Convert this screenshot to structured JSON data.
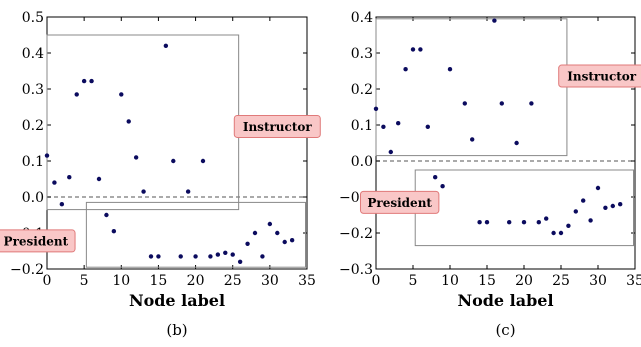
{
  "panels": [
    {
      "caption": "(b)",
      "chart_data": {
        "type": "scatter",
        "xlabel": "Node label",
        "ylabel": "",
        "xlim": [
          0,
          35
        ],
        "ylim": [
          -0.2,
          0.5
        ],
        "xticks": [
          "0",
          "5",
          "10",
          "15",
          "20",
          "25",
          "30",
          "35"
        ],
        "yticks": [
          "−0.2",
          "−0.1",
          "0.0",
          "0.1",
          "0.2",
          "0.3",
          "0.4",
          "0.5"
        ],
        "grid": false,
        "reference_line_y": 0,
        "marker_color": "#0b0b5e",
        "series": [
          {
            "values": [
              [
                0,
                0.115
              ],
              [
                1,
                0.04
              ],
              [
                2,
                -0.02
              ],
              [
                3,
                0.055
              ],
              [
                4,
                0.285
              ],
              [
                5,
                0.322
              ],
              [
                6,
                0.322
              ],
              [
                7,
                0.05
              ],
              [
                8,
                -0.05
              ],
              [
                9,
                -0.095
              ],
              [
                10,
                0.285
              ],
              [
                11,
                0.21
              ],
              [
                12,
                0.11
              ],
              [
                13,
                0.015
              ],
              [
                14,
                -0.165
              ],
              [
                15,
                -0.165
              ],
              [
                16,
                0.42
              ],
              [
                17,
                0.1
              ],
              [
                18,
                -0.165
              ],
              [
                19,
                0.015
              ],
              [
                20,
                -0.165
              ],
              [
                21,
                0.1
              ],
              [
                22,
                -0.165
              ],
              [
                23,
                -0.16
              ],
              [
                24,
                -0.155
              ],
              [
                25,
                -0.16
              ],
              [
                26,
                -0.18
              ],
              [
                27,
                -0.13
              ],
              [
                28,
                -0.1
              ],
              [
                29,
                -0.165
              ],
              [
                30,
                -0.075
              ],
              [
                31,
                -0.1
              ],
              [
                32,
                -0.125
              ],
              [
                33,
                -0.12
              ]
            ]
          }
        ],
        "regions": [
          {
            "x": [
              0,
              25.8
            ],
            "y": [
              -0.035,
              0.45
            ]
          },
          {
            "x": [
              5.3,
              34.8
            ],
            "y": [
              -0.195,
              -0.015
            ]
          }
        ],
        "annotations": [
          {
            "text": "Instructor",
            "x": 31,
            "y": 0.196
          },
          {
            "text": "President",
            "x": -1.5,
            "y": -0.122
          }
        ]
      }
    },
    {
      "caption": "(c)",
      "chart_data": {
        "type": "scatter",
        "xlabel": "Node label",
        "ylabel": "",
        "xlim": [
          0,
          35
        ],
        "ylim": [
          -0.3,
          0.4
        ],
        "xticks": [
          "0",
          "5",
          "10",
          "15",
          "20",
          "25",
          "30",
          "35"
        ],
        "yticks": [
          "−0.3",
          "−0.2",
          "−0.1",
          "0.0",
          "0.1",
          "0.2",
          "0.3",
          "0.4"
        ],
        "grid": false,
        "reference_line_y": 0,
        "marker_color": "#0b0b5e",
        "series": [
          {
            "values": [
              [
                0,
                0.145
              ],
              [
                1,
                0.095
              ],
              [
                2,
                0.025
              ],
              [
                3,
                0.105
              ],
              [
                4,
                0.255
              ],
              [
                5,
                0.31
              ],
              [
                6,
                0.31
              ],
              [
                7,
                0.095
              ],
              [
                8,
                -0.045
              ],
              [
                9,
                -0.07
              ],
              [
                10,
                0.255
              ],
              [
                12,
                0.16
              ],
              [
                13,
                0.06
              ],
              [
                14,
                -0.17
              ],
              [
                15,
                -0.17
              ],
              [
                16,
                0.39
              ],
              [
                17,
                0.16
              ],
              [
                18,
                -0.17
              ],
              [
                19,
                0.05
              ],
              [
                20,
                -0.17
              ],
              [
                21,
                0.16
              ],
              [
                22,
                -0.17
              ],
              [
                23,
                -0.16
              ],
              [
                24,
                -0.2
              ],
              [
                25,
                -0.2
              ],
              [
                26,
                -0.18
              ],
              [
                27,
                -0.14
              ],
              [
                28,
                -0.11
              ],
              [
                29,
                -0.165
              ],
              [
                30,
                -0.075
              ],
              [
                31,
                -0.13
              ],
              [
                32,
                -0.125
              ],
              [
                33,
                -0.12
              ]
            ]
          }
        ],
        "regions": [
          {
            "x": [
              0,
              25.8
            ],
            "y": [
              0.015,
              0.395
            ]
          },
          {
            "x": [
              5.3,
              34.8
            ],
            "y": [
              -0.235,
              -0.025
            ]
          }
        ],
        "annotations": [
          {
            "text": "Instructor",
            "x": 30.5,
            "y": 0.236
          },
          {
            "text": "President",
            "x": 3.2,
            "y": -0.115
          }
        ]
      }
    }
  ],
  "colors": {
    "marker": "#0b0b5e",
    "annotation_fill": "#f9c7c7",
    "annotation_border": "#e07a7a",
    "region_border": "#888888",
    "zero_line": "#777777"
  }
}
